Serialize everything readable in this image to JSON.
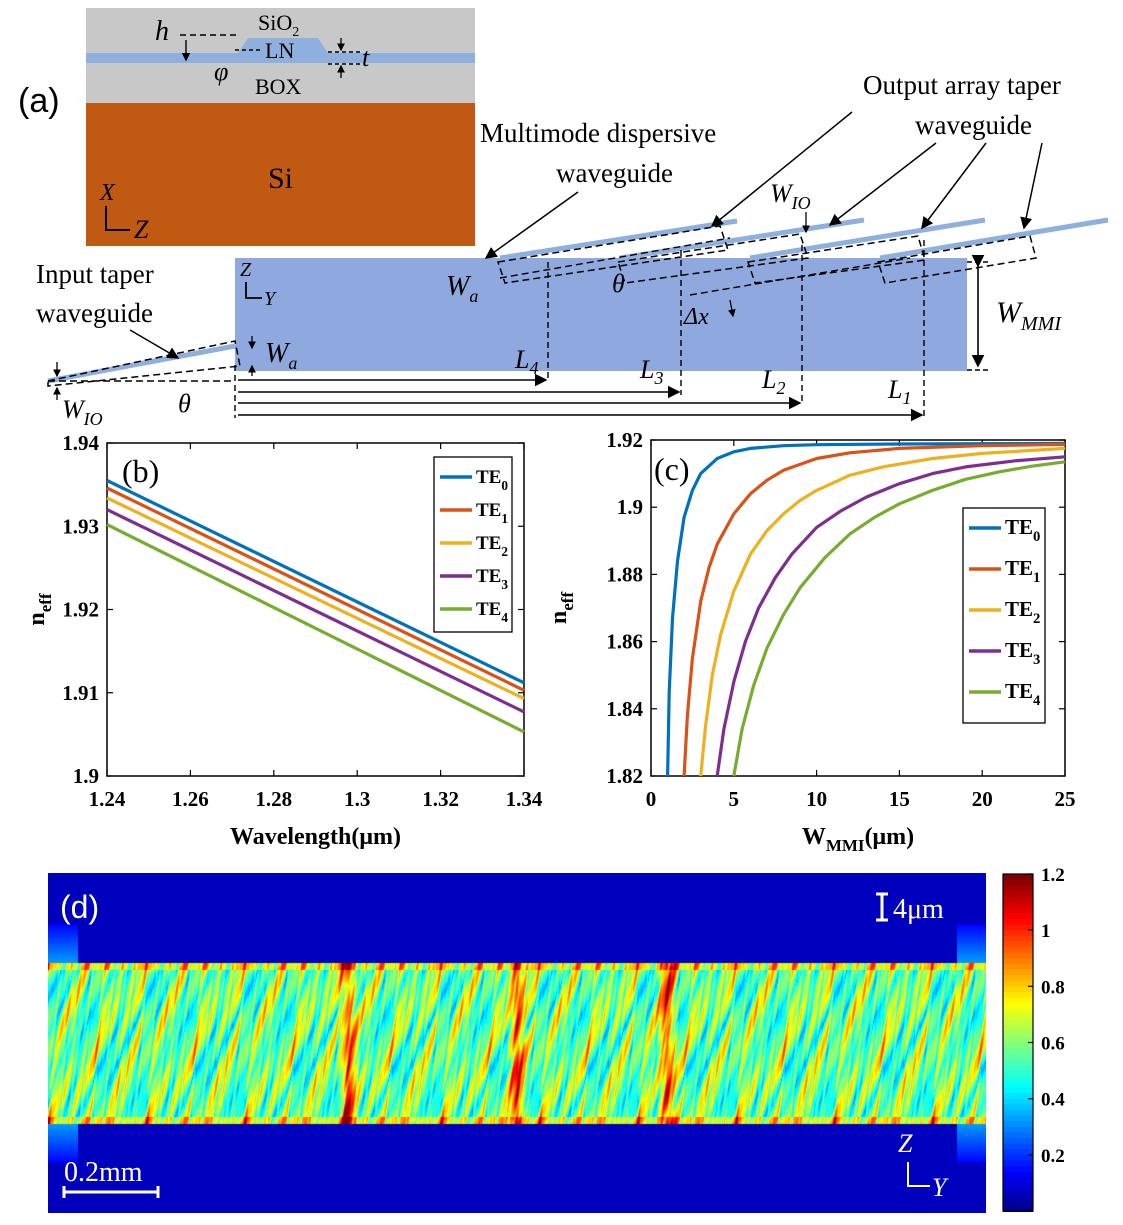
{
  "panel_a": {
    "label": "(a)",
    "cross_section": {
      "layers": {
        "sio2": "SiO",
        "sio2_sub": "2",
        "ln": "LN",
        "box": "BOX",
        "si": "Si"
      },
      "symbols": {
        "h": "h",
        "phi": "φ",
        "t": "t"
      },
      "axes": {
        "x": "X",
        "z": "Z"
      },
      "colors": {
        "cladding": "#c8c8c8",
        "ln": "#8fb0de",
        "si": "#c05a12"
      }
    },
    "device": {
      "axes": {
        "z": "Z",
        "y": "Y"
      },
      "labels": {
        "multimode_line1": "Multimode dispersive",
        "multimode_line2": "waveguide",
        "output_line1": "Output array taper",
        "output_line2": "waveguide",
        "input_line1": "Input taper",
        "input_line2": "waveguide"
      },
      "symbols": {
        "w_io_main": "W",
        "w_io_sub": "IO",
        "w_a_main": "W",
        "w_a_sub": "a",
        "w_mmi_main": "W",
        "w_mmi_sub": "MMI",
        "theta": "θ",
        "delta_x": "Δx",
        "l4": "L",
        "l4_sub": "4",
        "l3": "L",
        "l3_sub": "3",
        "l2": "L",
        "l2_sub": "2",
        "l1": "L",
        "l1_sub": "1"
      },
      "colors": {
        "mmi": "#8fa9de",
        "waveguide": "#8fb0de"
      }
    }
  },
  "chart_data": [
    {
      "id": "b",
      "type": "line",
      "panel_label": "(b)",
      "xlabel": "Wavelength(μm)",
      "ylabel": "n",
      "ylabel_sub": "eff",
      "xlim": [
        1.24,
        1.34
      ],
      "ylim": [
        1.9,
        1.94
      ],
      "xticks": [
        "1.24",
        "1.26",
        "1.28",
        "1.3",
        "1.32",
        "1.34"
      ],
      "yticks": [
        "1.9",
        "1.91",
        "1.92",
        "1.93",
        "1.94"
      ],
      "legend_position": "top-right",
      "x": [
        1.24,
        1.34
      ],
      "series": [
        {
          "name": "TE",
          "sub": "0",
          "color": "#0072bd",
          "values": [
            1.9355,
            1.9112
          ]
        },
        {
          "name": "TE",
          "sub": "1",
          "color": "#d95319",
          "values": [
            1.9346,
            1.9103
          ]
        },
        {
          "name": "TE",
          "sub": "2",
          "color": "#edb120",
          "values": [
            1.9334,
            1.9093
          ]
        },
        {
          "name": "TE",
          "sub": "3",
          "color": "#7e2f8e",
          "values": [
            1.932,
            1.9077
          ]
        },
        {
          "name": "TE",
          "sub": "4",
          "color": "#77ac30",
          "values": [
            1.9302,
            1.9053
          ]
        }
      ]
    },
    {
      "id": "c",
      "type": "line",
      "panel_label": "(c)",
      "xlabel": "W",
      "xlabel_sub": "MMI",
      "xlabel_unit": "(μm)",
      "ylabel": "n",
      "ylabel_sub": "eff",
      "xlim": [
        0,
        25
      ],
      "ylim": [
        1.82,
        1.92
      ],
      "xticks": [
        "0",
        "5",
        "10",
        "15",
        "20",
        "25"
      ],
      "yticks": [
        "1.82",
        "1.84",
        "1.86",
        "1.88",
        "1.9",
        "1.92"
      ],
      "legend_position": "center-right",
      "series": [
        {
          "name": "TE",
          "sub": "0",
          "color": "#0072bd",
          "x": [
            1.0,
            1.1,
            1.3,
            1.6,
            2.0,
            2.5,
            3.0,
            4.0,
            5.0,
            6.0,
            8.0,
            10.0,
            15.0,
            20.0,
            25.0
          ],
          "values": [
            1.82,
            1.845,
            1.867,
            1.884,
            1.897,
            1.905,
            1.91,
            1.9145,
            1.9165,
            1.9175,
            1.9183,
            1.9186,
            1.9188,
            1.9189,
            1.919
          ]
        },
        {
          "name": "TE",
          "sub": "1",
          "color": "#d95319",
          "x": [
            2.0,
            2.2,
            2.5,
            3.0,
            3.5,
            4.0,
            5.0,
            6.0,
            7.0,
            8.0,
            10.0,
            12.0,
            15.0,
            20.0,
            25.0
          ],
          "values": [
            1.82,
            1.838,
            1.855,
            1.872,
            1.882,
            1.889,
            1.898,
            1.904,
            1.908,
            1.911,
            1.9145,
            1.9162,
            1.9175,
            1.9183,
            1.9187
          ]
        },
        {
          "name": "TE",
          "sub": "2",
          "color": "#edb120",
          "x": [
            3.0,
            3.3,
            3.7,
            4.2,
            5.0,
            6.0,
            7.0,
            8.0,
            9.0,
            10.0,
            12.0,
            14.0,
            17.0,
            20.0,
            25.0
          ],
          "values": [
            1.82,
            1.835,
            1.85,
            1.862,
            1.875,
            1.886,
            1.893,
            1.898,
            1.902,
            1.905,
            1.9095,
            1.912,
            1.9145,
            1.916,
            1.9175
          ]
        },
        {
          "name": "TE",
          "sub": "3",
          "color": "#7e2f8e",
          "x": [
            4.0,
            4.4,
            5.0,
            5.7,
            6.5,
            7.5,
            8.5,
            10.0,
            11.5,
            13.0,
            15.0,
            17.0,
            19.0,
            22.0,
            25.0
          ],
          "values": [
            1.82,
            1.834,
            1.848,
            1.86,
            1.87,
            1.879,
            1.886,
            1.894,
            1.899,
            1.903,
            1.907,
            1.91,
            1.912,
            1.9138,
            1.915
          ]
        },
        {
          "name": "TE",
          "sub": "4",
          "color": "#77ac30",
          "x": [
            5.0,
            5.5,
            6.2,
            7.0,
            8.0,
            9.0,
            10.5,
            12.0,
            13.5,
            15.0,
            17.0,
            19.0,
            21.0,
            23.0,
            25.0
          ],
          "values": [
            1.82,
            1.834,
            1.847,
            1.858,
            1.868,
            1.876,
            1.885,
            1.892,
            1.897,
            1.901,
            1.905,
            1.9083,
            1.9105,
            1.9122,
            1.9135
          ]
        }
      ]
    },
    {
      "id": "d",
      "type": "heatmap",
      "panel_label": "(d)",
      "scale_bar_vertical": "4μm",
      "scale_bar_horizontal": "0.2mm",
      "axes": {
        "z": "Z",
        "y": "Y"
      },
      "colorbar_ticks": [
        "1.2",
        "1",
        "0.8",
        "0.6",
        "0.4",
        "0.2"
      ],
      "colorbar_range": [
        0,
        1.2
      ],
      "colormap": "jet",
      "description_values": {
        "self_imaging_planes_fraction": [
          0.32,
          0.5,
          0.66
        ]
      }
    }
  ]
}
